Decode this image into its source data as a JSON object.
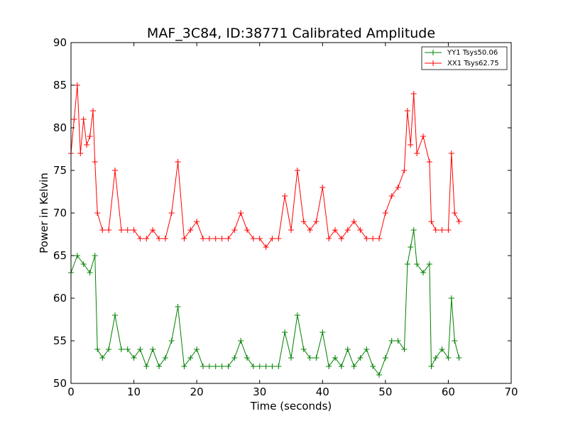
{
  "chart_data": {
    "type": "line",
    "title": "MAF_3C84, ID:38771 Calibrated Amplitude",
    "xlabel": "Time (seconds)",
    "ylabel": "Power in Kelvin",
    "xlim": [
      0,
      70
    ],
    "ylim": [
      50,
      90
    ],
    "xticks": [
      0,
      10,
      20,
      30,
      40,
      50,
      60,
      70
    ],
    "yticks": [
      50,
      55,
      60,
      65,
      70,
      75,
      80,
      85,
      90
    ],
    "grid": false,
    "legend_position": "top-right",
    "series": [
      {
        "name": "YY1 Tsys50.06",
        "color": "#008000",
        "x": [
          0,
          1,
          2,
          3,
          3.8,
          4.2,
          5,
          6,
          7,
          8,
          9,
          10,
          11,
          12,
          13,
          14,
          15,
          16,
          17,
          18,
          19,
          20,
          21,
          22,
          23,
          24,
          25,
          26,
          27,
          28,
          29,
          30,
          31,
          32,
          33,
          34,
          35,
          36,
          37,
          38,
          39,
          40,
          41,
          42,
          43,
          44,
          45,
          46,
          47,
          48,
          49,
          50,
          51,
          52,
          53,
          53.5,
          54,
          54.5,
          55,
          56,
          57,
          57.3,
          58,
          59,
          60,
          60.5,
          61,
          61.7
        ],
        "y": [
          63,
          65,
          64,
          63,
          65,
          54,
          53,
          54,
          58,
          54,
          54,
          53,
          54,
          52,
          54,
          52,
          53,
          55,
          59,
          52,
          53,
          54,
          52,
          52,
          52,
          52,
          52,
          53,
          55,
          53,
          52,
          52,
          52,
          52,
          52,
          56,
          53,
          58,
          54,
          53,
          53,
          56,
          52,
          53,
          52,
          54,
          52,
          53,
          54,
          52,
          51,
          53,
          55,
          55,
          54,
          64,
          66,
          68,
          64,
          63,
          64,
          52,
          53,
          54,
          53,
          60,
          55,
          53
        ]
      },
      {
        "name": "XX1 Tsys62.75",
        "color": "#ff0000",
        "x": [
          0,
          0.5,
          1,
          1.5,
          2,
          2.5,
          3,
          3.5,
          3.8,
          4.2,
          5,
          6,
          7,
          8,
          9,
          10,
          11,
          12,
          13,
          14,
          15,
          16,
          17,
          18,
          19,
          20,
          21,
          22,
          23,
          24,
          25,
          26,
          27,
          28,
          29,
          30,
          31,
          32,
          33,
          34,
          35,
          36,
          37,
          38,
          39,
          40,
          41,
          42,
          43,
          44,
          45,
          46,
          47,
          48,
          49,
          50,
          51,
          52,
          53,
          53.5,
          54,
          54.5,
          55,
          56,
          57,
          57.3,
          58,
          59,
          60,
          60.5,
          61,
          61.7
        ],
        "y": [
          77,
          81,
          85,
          77,
          81,
          78,
          79,
          82,
          76,
          70,
          68,
          68,
          75,
          68,
          68,
          68,
          67,
          67,
          68,
          67,
          67,
          70,
          76,
          67,
          68,
          69,
          67,
          67,
          67,
          67,
          67,
          68,
          70,
          68,
          67,
          67,
          66,
          67,
          67,
          72,
          68,
          75,
          69,
          68,
          69,
          73,
          67,
          68,
          67,
          68,
          69,
          68,
          67,
          67,
          67,
          70,
          72,
          73,
          75,
          82,
          78,
          84,
          77,
          79,
          76,
          69,
          68,
          68,
          68,
          77,
          70,
          69
        ]
      }
    ]
  }
}
